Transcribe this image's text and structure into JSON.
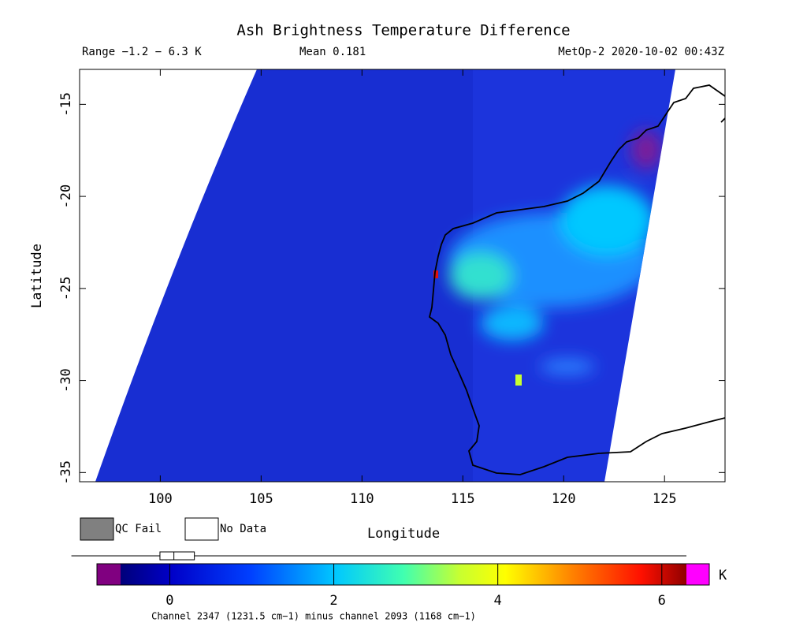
{
  "chart_data": {
    "type": "map",
    "title": "Ash Brightness Temperature Difference",
    "range_label": "Range −1.2 − 6.3 K",
    "mean_label": "Mean 0.181",
    "source_label": "MetOp-2 2020-10-02 00:43Z",
    "x_label": "Longitude",
    "y_label": "Latitude",
    "xlim": [
      96,
      128
    ],
    "xticks": [
      100,
      105,
      110,
      115,
      120,
      125
    ],
    "ylim": [
      -35.5,
      -13.1
    ],
    "yticks": [
      -35,
      -30,
      -25,
      -20,
      -15
    ],
    "legend": [
      {
        "name": "QC Fail",
        "color": "#808080"
      },
      {
        "name": "No Data",
        "color": "#ffffff"
      }
    ],
    "colorbar": {
      "lim": [
        -0.6,
        6.3
      ],
      "ticks": [
        0,
        2,
        4,
        6
      ],
      "unit": "K",
      "under_color": "#800080",
      "over_color": "#ff00ff"
    },
    "boxplot": {
      "min": -1.2,
      "q1": -0.12,
      "median": 0.05,
      "q3": 0.3,
      "max": 6.3
    },
    "caption": "Channel 2347 (1231.5 cm−1) minus channel 2093 (1168 cm−1)"
  }
}
